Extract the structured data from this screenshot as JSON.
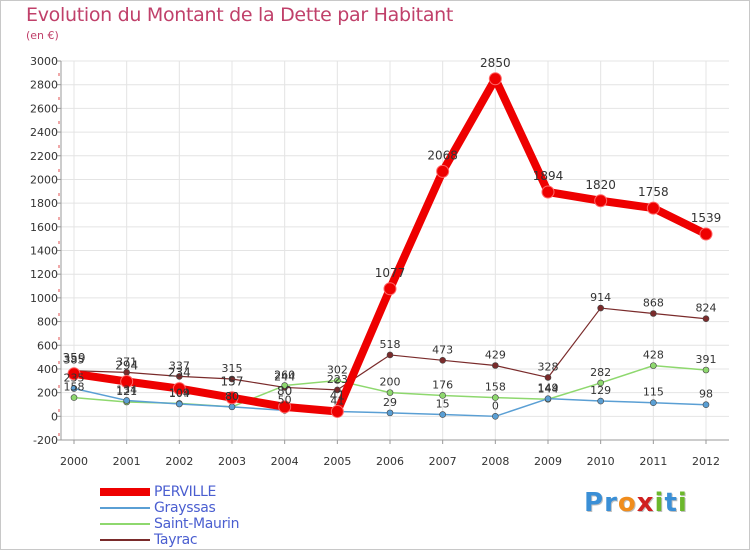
{
  "header": {
    "title": "Evolution du Montant de la Dette par Habitant",
    "subtitle": "(en €)"
  },
  "logo": {
    "letters": [
      "P",
      "r",
      "o",
      "x",
      "i",
      "t",
      "i"
    ],
    "colors": [
      "#3a8fd6",
      "#3a8fd6",
      "#f08c1c",
      "#d02020",
      "#6cb82c",
      "#3a8fd6",
      "#6cb82c"
    ]
  },
  "chart_data": {
    "type": "line",
    "x": [
      "2000",
      "2001",
      "2002",
      "2003",
      "2004",
      "2005",
      "2006",
      "2007",
      "2008",
      "2009",
      "2010",
      "2011",
      "2012"
    ],
    "ylim": [
      -200,
      3000
    ],
    "yticks": [
      -200,
      0,
      200,
      400,
      600,
      800,
      1000,
      1200,
      1400,
      1600,
      1800,
      2000,
      2200,
      2400,
      2600,
      2800,
      3000
    ],
    "grid": true,
    "legend_position": "bottom-left",
    "series": [
      {
        "name": "PERVILLE",
        "color": "#ee0000",
        "values": [
          359,
          294,
          234,
          157,
          80,
          41,
          1077,
          2068,
          2850,
          1894,
          1820,
          1758,
          1539
        ],
        "labels": [
          "359",
          "294",
          "234",
          "157",
          "80",
          "41",
          "1077",
          "2068",
          "2850",
          "1894",
          "1820",
          "1758",
          "1539"
        ]
      },
      {
        "name": "Grayssas",
        "color": "#5a9fd4",
        "values": [
          235,
          134,
          104,
          80,
          50,
          41,
          29,
          15,
          0,
          149,
          129,
          115,
          98
        ],
        "labels": [
          "235",
          "134",
          "104",
          "80",
          "50",
          "41",
          "29",
          "15",
          "0",
          "149",
          "129",
          "115",
          "98"
        ]
      },
      {
        "name": "Saint-Maurin",
        "color": "#8ed86e",
        "values": [
          158,
          121,
          109,
          80,
          260,
          302,
          200,
          176,
          158,
          144,
          282,
          428,
          391
        ],
        "labels": [
          "158",
          "121",
          "109",
          "80",
          "260",
          "302",
          "200",
          "176",
          "158",
          "144",
          "282",
          "428",
          "391"
        ]
      },
      {
        "name": "Tayrac",
        "color": "#7a2b2b",
        "values": [
          385,
          371,
          337,
          315,
          244,
          223,
          518,
          473,
          429,
          328,
          914,
          868,
          824
        ],
        "labels": [
          "385",
          "371",
          "337",
          "315",
          "244",
          "223",
          "518",
          "473",
          "429",
          "328",
          "914",
          "868",
          "824"
        ]
      }
    ]
  }
}
